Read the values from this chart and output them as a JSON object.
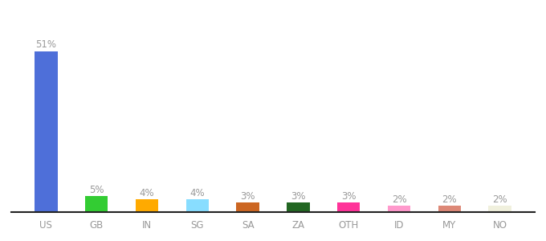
{
  "categories": [
    "US",
    "GB",
    "IN",
    "SG",
    "SA",
    "ZA",
    "OTH",
    "ID",
    "MY",
    "NO"
  ],
  "values": [
    51,
    5,
    4,
    4,
    3,
    3,
    3,
    2,
    2,
    2
  ],
  "bar_colors": [
    "#4e6fd9",
    "#33cc33",
    "#ffaa00",
    "#88ddff",
    "#cc6622",
    "#226622",
    "#ff3399",
    "#ff99cc",
    "#dd8877",
    "#f0f0dd"
  ],
  "background_color": "#ffffff",
  "ylim": [
    0,
    58
  ],
  "label_fontsize": 8.5,
  "tick_fontsize": 8.5,
  "label_color": "#999999",
  "tick_color": "#999999"
}
